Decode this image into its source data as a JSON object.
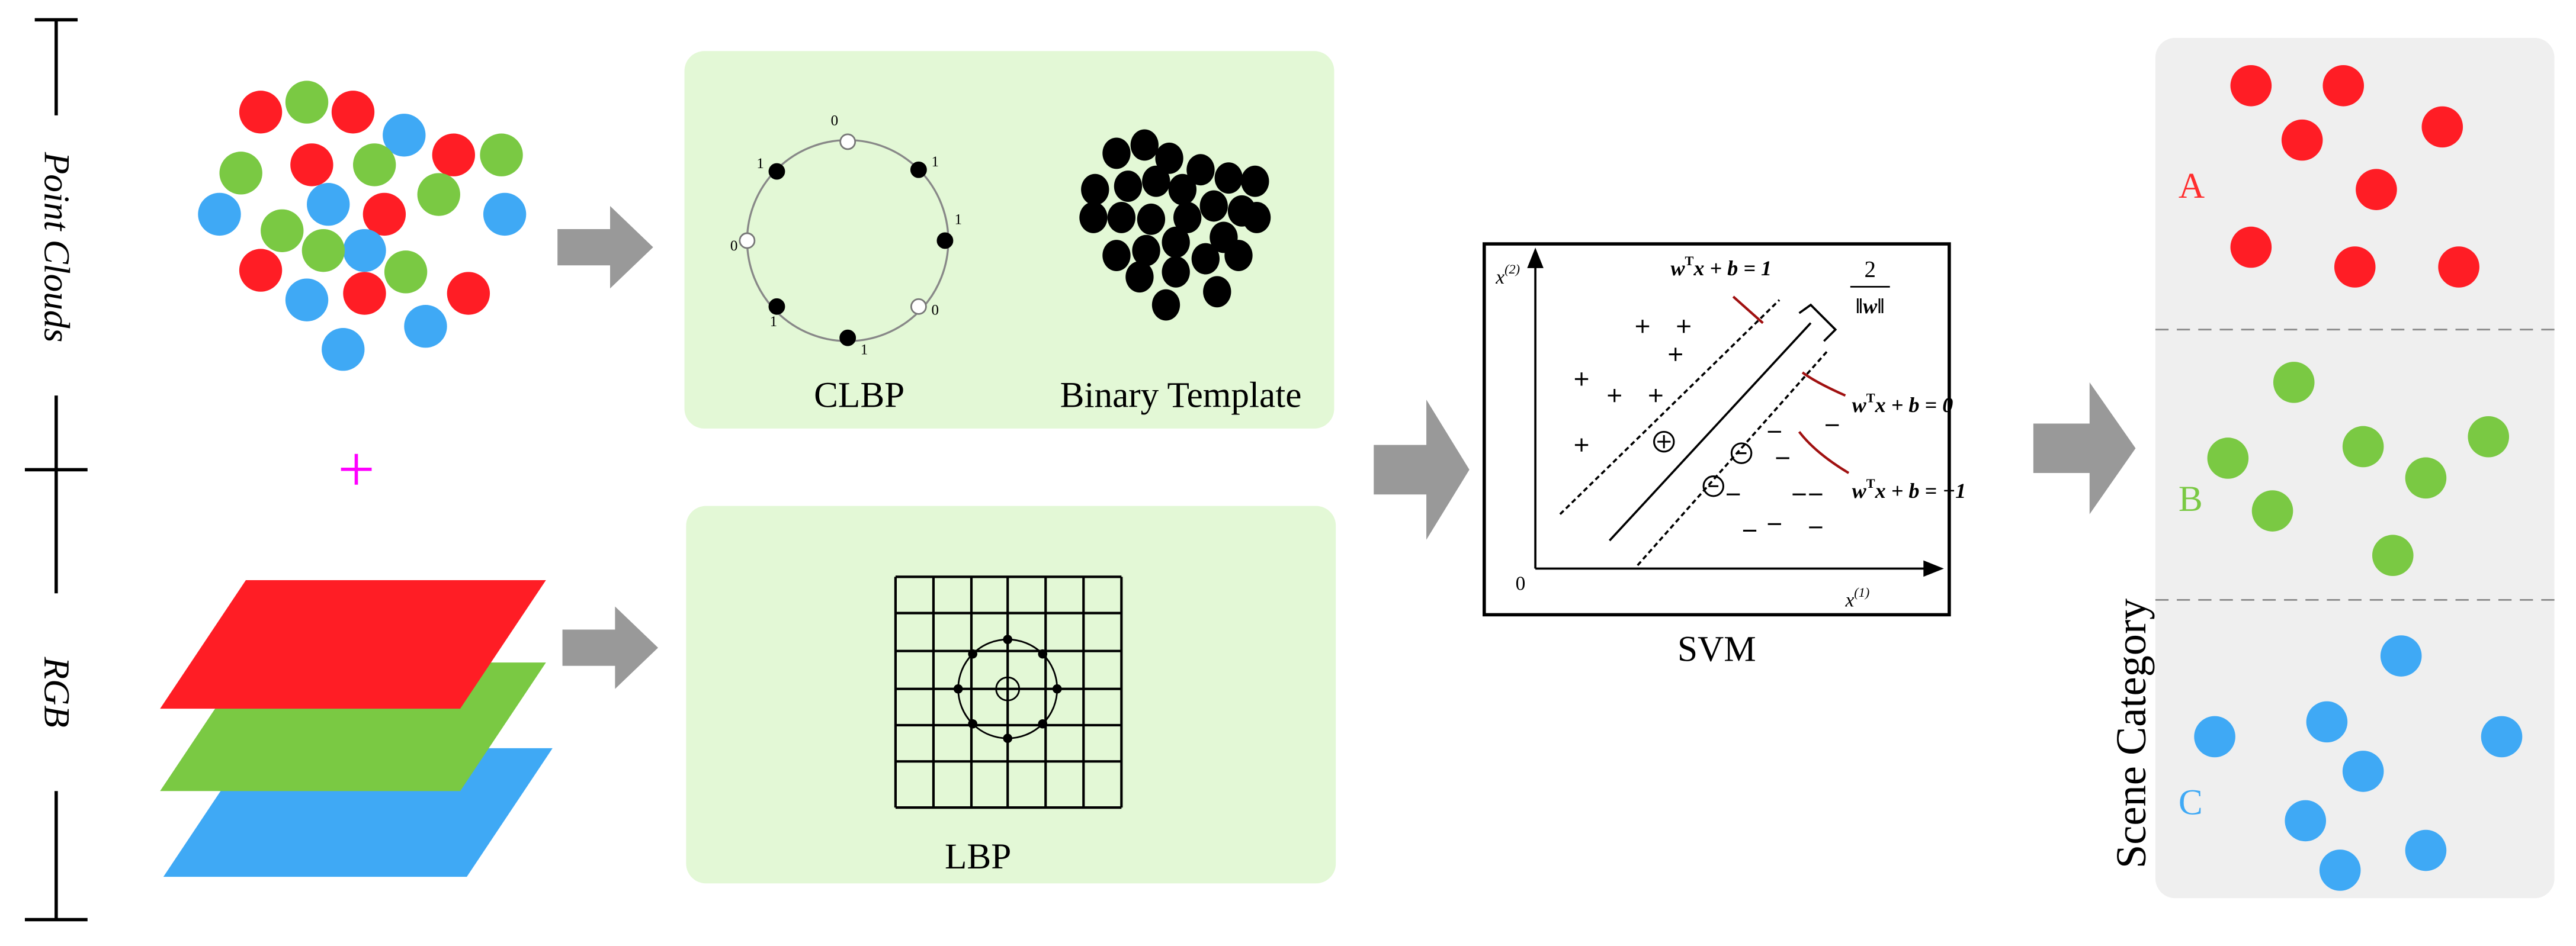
{
  "side_labels": {
    "point_clouds": "Point Clouds",
    "rgb": "RGB"
  },
  "plus": "+",
  "clbp": {
    "title": "CLBP",
    "bits": [
      "0",
      "1",
      "1",
      "0",
      "1",
      "1",
      "0",
      "1"
    ]
  },
  "binary_template": {
    "title": "Binary Template"
  },
  "lbp": {
    "title": "LBP"
  },
  "svm": {
    "title": "SVM",
    "y_axis": {
      "var": "x",
      "sup": "(2)"
    },
    "x_axis": {
      "var": "x",
      "sup": "(1)"
    },
    "origin": "0",
    "margin": {
      "numerator": "2",
      "denominator": "‖w‖"
    },
    "hyperplanes": [
      {
        "w": "w",
        "t": "T",
        "rest": "x + b = 1"
      },
      {
        "w": "w",
        "t": "T",
        "rest": "x + b = 0"
      },
      {
        "w": "w",
        "t": "T",
        "rest": "x + b = −1"
      }
    ]
  },
  "scene": {
    "title": "Scene Category",
    "categories": [
      "A",
      "B",
      "C"
    ]
  }
}
